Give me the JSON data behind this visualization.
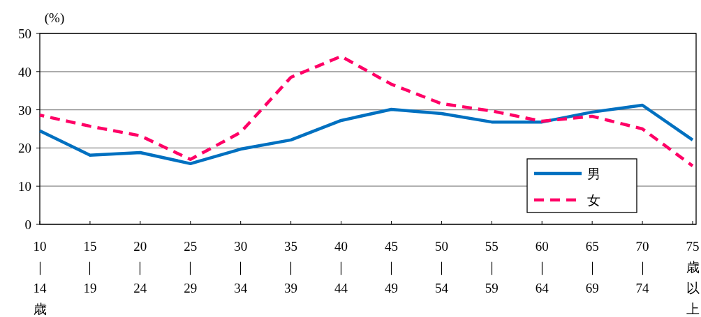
{
  "chart_data": {
    "type": "line",
    "ylabel": "(%)",
    "categories": [
      "10｜14歳",
      "15｜19",
      "20｜24",
      "25｜29",
      "30｜34",
      "35｜39",
      "40｜44",
      "45｜49",
      "50｜54",
      "55｜59",
      "60｜64",
      "65｜69",
      "70｜74",
      "75歳以上"
    ],
    "series": [
      {
        "name": "男",
        "color": "#0070c0",
        "line_style": "solid",
        "values": [
          24.5,
          18.1,
          18.8,
          15.9,
          19.7,
          22.1,
          27.2,
          30.1,
          29.0,
          26.8,
          26.8,
          29.4,
          31.2,
          22.1
        ]
      },
      {
        "name": "女",
        "color": "#ff0066",
        "line_style": "dashed",
        "values": [
          28.6,
          25.7,
          23.2,
          17.0,
          24.1,
          38.5,
          44.0,
          36.7,
          31.6,
          29.7,
          27.0,
          28.3,
          25.0,
          15.3
        ]
      }
    ],
    "ylim": [
      0,
      50
    ],
    "yticks": [
      0,
      10,
      20,
      30,
      40,
      50
    ],
    "grid": "y",
    "legend": "bottom right",
    "marker": "none"
  }
}
